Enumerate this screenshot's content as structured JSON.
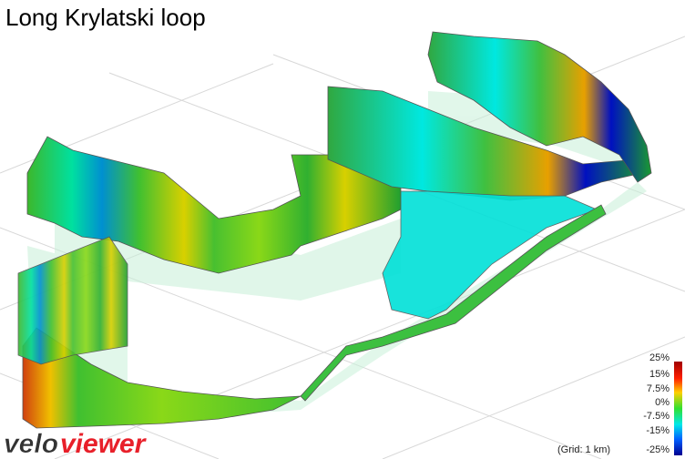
{
  "header": {
    "title": "Long Krylatski loop"
  },
  "legend": {
    "labels": [
      "25%",
      "15%",
      "7.5%",
      "0%",
      "-7.5%",
      "-15%",
      "-25%"
    ],
    "grid_note": "(Grid: 1 km)"
  },
  "logo": {
    "part1": "velo",
    "part2": "viewer"
  }
}
